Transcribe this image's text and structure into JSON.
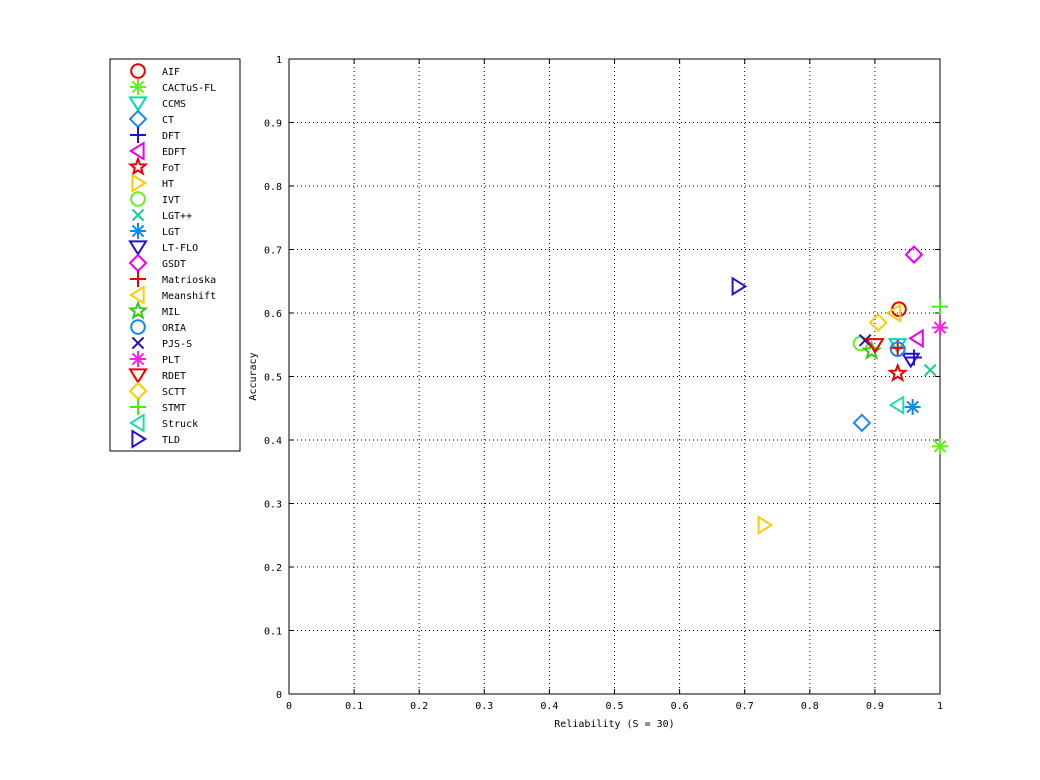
{
  "chart_data": {
    "type": "scatter",
    "title": "",
    "xlabel": "Reliability (S = 30)",
    "ylabel": "Accuracy",
    "xlim": [
      0,
      1
    ],
    "ylim": [
      0,
      1
    ],
    "xticks": [
      "0",
      "0.1",
      "0.2",
      "0.3",
      "0.4",
      "0.5",
      "0.6",
      "0.7",
      "0.8",
      "0.9",
      "1"
    ],
    "yticks": [
      "0",
      "0.1",
      "0.2",
      "0.3",
      "0.4",
      "0.5",
      "0.6",
      "0.7",
      "0.8",
      "0.9",
      "1"
    ],
    "grid": true,
    "legend_position": "outside-left",
    "series": [
      {
        "name": "AIF",
        "marker": "circle",
        "color": "#e60000",
        "x": 0.937,
        "y": 0.606
      },
      {
        "name": "CACTuS-FL",
        "marker": "asterisk",
        "color": "#66ee22",
        "x": 1.0,
        "y": 0.39
      },
      {
        "name": "CCMS",
        "marker": "triangle-down",
        "color": "#00ddaa",
        "x": 0.935,
        "y": 0.55
      },
      {
        "name": "CT",
        "marker": "diamond",
        "color": "#2288ee",
        "x": 0.88,
        "y": 0.427
      },
      {
        "name": "DFT",
        "marker": "plus",
        "color": "#1f0fd8",
        "x": 0.96,
        "y": 0.53
      },
      {
        "name": "EDFT",
        "marker": "triangle-left",
        "color": "#ee00ee",
        "x": 0.965,
        "y": 0.56
      },
      {
        "name": "FoT",
        "marker": "star",
        "color": "#ee0000",
        "x": 0.935,
        "y": 0.505
      },
      {
        "name": "HT",
        "marker": "triangle-right",
        "color": "#ffcc00",
        "x": 0.73,
        "y": 0.266
      },
      {
        "name": "IVT",
        "marker": "circle",
        "color": "#66ee22",
        "x": 0.878,
        "y": 0.552
      },
      {
        "name": "LGT++",
        "marker": "cross",
        "color": "#11cc99",
        "x": 0.985,
        "y": 0.51
      },
      {
        "name": "LGT",
        "marker": "asterisk",
        "color": "#1188ee",
        "x": 0.958,
        "y": 0.452
      },
      {
        "name": "LT-FLO",
        "marker": "triangle-down",
        "color": "#2211dd",
        "x": 0.955,
        "y": 0.527
      },
      {
        "name": "GSDT",
        "marker": "diamond",
        "color": "#ee00ee",
        "x": 0.96,
        "y": 0.692
      },
      {
        "name": "Matrioska",
        "marker": "plus",
        "color": "#ee0000",
        "x": 0.935,
        "y": 0.545
      },
      {
        "name": "Meanshift",
        "marker": "triangle-left",
        "color": "#ffcc00",
        "x": 0.93,
        "y": 0.6
      },
      {
        "name": "MIL",
        "marker": "star",
        "color": "#33cc11",
        "x": 0.895,
        "y": 0.54
      },
      {
        "name": "ORIA",
        "marker": "circle",
        "color": "#1188ee",
        "x": 0.935,
        "y": 0.543
      },
      {
        "name": "PJS-S",
        "marker": "cross",
        "color": "#2211aa",
        "x": 0.885,
        "y": 0.557
      },
      {
        "name": "PLT",
        "marker": "asterisk",
        "color": "#ff22dd",
        "x": 1.0,
        "y": 0.577
      },
      {
        "name": "RDET",
        "marker": "triangle-down",
        "color": "#ee0000",
        "x": 0.9,
        "y": 0.55
      },
      {
        "name": "SCTT",
        "marker": "diamond",
        "color": "#ffcc00",
        "x": 0.905,
        "y": 0.585
      },
      {
        "name": "STMT",
        "marker": "plus",
        "color": "#44ee11",
        "x": 1.0,
        "y": 0.61
      },
      {
        "name": "Struck",
        "marker": "triangle-left",
        "color": "#22ddaa",
        "x": 0.935,
        "y": 0.455
      },
      {
        "name": "TLD",
        "marker": "triangle-right",
        "color": "#2211dd",
        "x": 0.69,
        "y": 0.642
      }
    ]
  }
}
